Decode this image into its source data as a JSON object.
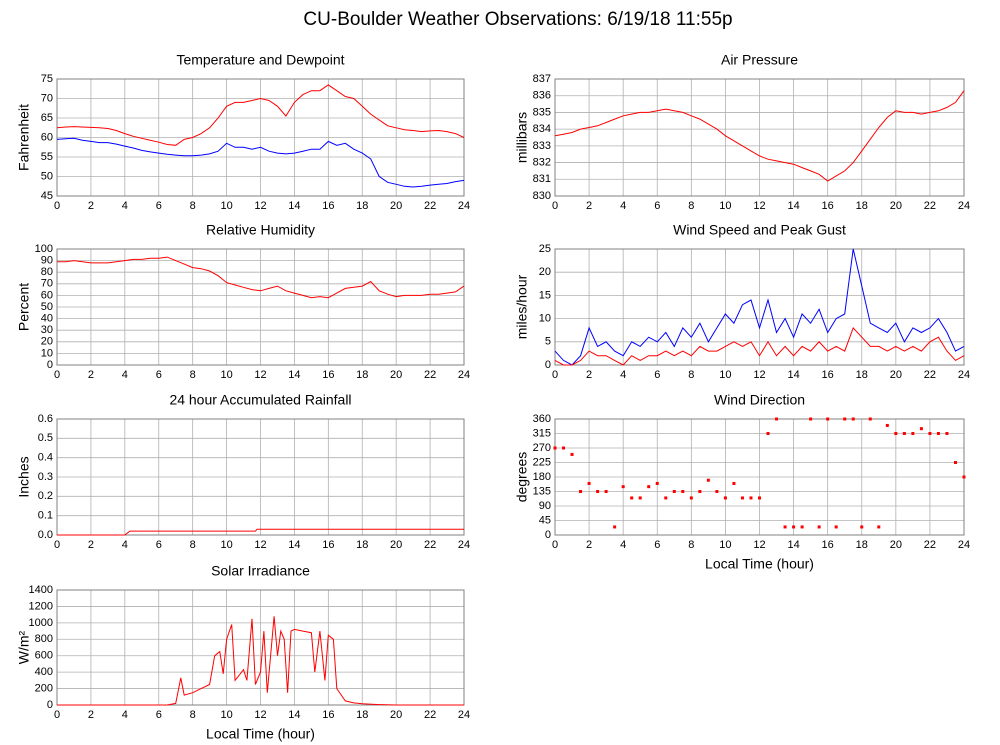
{
  "title": "CU-Boulder Weather Observations: 6/19/18 11:55p",
  "chart_data": [
    {
      "type": "line",
      "title": "Temperature and Dewpoint",
      "ylabel": "Fahrenheit",
      "grid": true,
      "x": [
        0,
        0.5,
        1,
        1.5,
        2,
        2.5,
        3,
        3.5,
        4,
        4.5,
        5,
        5.5,
        6,
        6.5,
        7,
        7.5,
        8,
        8.5,
        9,
        9.5,
        10,
        10.5,
        11,
        11.5,
        12,
        12.5,
        13,
        13.5,
        14,
        14.5,
        15,
        15.5,
        16,
        16.5,
        17,
        17.5,
        18,
        18.5,
        19,
        19.5,
        20,
        20.5,
        21,
        21.5,
        22,
        22.5,
        23,
        23.5,
        24
      ],
      "xlim": [
        0,
        24
      ],
      "xticks": [
        0,
        2,
        4,
        6,
        8,
        10,
        12,
        14,
        16,
        18,
        20,
        22,
        24
      ],
      "ylim": [
        45,
        75
      ],
      "yticks": [
        45,
        50,
        55,
        60,
        65,
        70,
        75
      ],
      "series": [
        {
          "color": "#ff0000",
          "values": [
            62.5,
            62.7,
            62.8,
            62.7,
            62.6,
            62.5,
            62.3,
            61.8,
            61,
            60.3,
            59.8,
            59.3,
            58.8,
            58.2,
            58,
            59.5,
            60,
            61,
            62.5,
            65,
            68,
            69,
            69,
            69.5,
            70,
            69.5,
            68,
            65.5,
            69,
            71,
            72,
            72,
            73.5,
            72,
            70.5,
            70,
            68,
            66,
            64.5,
            63,
            62.5,
            62,
            61.8,
            61.5,
            61.7,
            61.8,
            61.5,
            61,
            60
          ]
        },
        {
          "color": "#0000ff",
          "values": [
            59.5,
            59.7,
            59.8,
            59.3,
            59,
            58.7,
            58.7,
            58.3,
            57.8,
            57.3,
            56.7,
            56.3,
            56,
            55.7,
            55.5,
            55.3,
            55.3,
            55.5,
            55.8,
            56.5,
            58.5,
            57.5,
            57.5,
            57,
            57.5,
            56.5,
            56,
            55.8,
            56,
            56.5,
            57,
            57,
            59,
            58,
            58.5,
            57,
            56,
            54.5,
            50,
            48.5,
            48,
            47.5,
            47.3,
            47.5,
            47.8,
            48,
            48.2,
            48.7,
            49
          ]
        }
      ]
    },
    {
      "type": "line",
      "title": "Air Pressure",
      "ylabel": "millibars",
      "grid": true,
      "x": [
        0,
        0.5,
        1,
        1.5,
        2,
        2.5,
        3,
        3.5,
        4,
        4.5,
        5,
        5.5,
        6,
        6.5,
        7,
        7.5,
        8,
        8.5,
        9,
        9.5,
        10,
        10.5,
        11,
        11.5,
        12,
        12.5,
        13,
        13.5,
        14,
        14.5,
        15,
        15.5,
        16,
        16.5,
        17,
        17.5,
        18,
        18.5,
        19,
        19.5,
        20,
        20.5,
        21,
        21.5,
        22,
        22.5,
        23,
        23.5,
        24
      ],
      "xlim": [
        0,
        24
      ],
      "xticks": [
        0,
        2,
        4,
        6,
        8,
        10,
        12,
        14,
        16,
        18,
        20,
        22,
        24
      ],
      "ylim": [
        830,
        837
      ],
      "yticks": [
        830,
        831,
        832,
        833,
        834,
        835,
        836,
        837
      ],
      "series": [
        {
          "color": "#ff0000",
          "values": [
            833.6,
            833.7,
            833.8,
            834,
            834.1,
            834.2,
            834.4,
            834.6,
            834.8,
            834.9,
            835,
            835,
            835.1,
            835.2,
            835.1,
            835,
            834.8,
            834.6,
            834.3,
            834,
            833.6,
            833.3,
            833,
            832.7,
            832.4,
            832.2,
            832.1,
            832,
            831.9,
            831.7,
            831.5,
            831.3,
            830.9,
            831.2,
            831.5,
            832,
            832.7,
            833.4,
            834.1,
            834.7,
            835.1,
            835,
            835,
            834.9,
            835,
            835.1,
            835.3,
            835.6,
            836.3
          ]
        }
      ]
    },
    {
      "type": "line",
      "title": "Relative Humidity",
      "ylabel": "Percent",
      "grid": true,
      "x": [
        0,
        0.5,
        1,
        1.5,
        2,
        2.5,
        3,
        3.5,
        4,
        4.5,
        5,
        5.5,
        6,
        6.5,
        7,
        7.5,
        8,
        8.5,
        9,
        9.5,
        10,
        10.5,
        11,
        11.5,
        12,
        12.5,
        13,
        13.5,
        14,
        14.5,
        15,
        15.5,
        16,
        16.5,
        17,
        17.5,
        18,
        18.5,
        19,
        19.5,
        20,
        20.5,
        21,
        21.5,
        22,
        22.5,
        23,
        23.5,
        24
      ],
      "xlim": [
        0,
        24
      ],
      "xticks": [
        0,
        2,
        4,
        6,
        8,
        10,
        12,
        14,
        16,
        18,
        20,
        22,
        24
      ],
      "ylim": [
        0,
        100
      ],
      "yticks": [
        0,
        10,
        20,
        30,
        40,
        50,
        60,
        70,
        80,
        90,
        100
      ],
      "series": [
        {
          "color": "#ff0000",
          "values": [
            89,
            89,
            90,
            89,
            88,
            88,
            88,
            89,
            90,
            91,
            91,
            92,
            92,
            93,
            90,
            87,
            84,
            83,
            81,
            77,
            71,
            69,
            67,
            65,
            64,
            66,
            68,
            64,
            62,
            60,
            58,
            59,
            58,
            62,
            66,
            67,
            68,
            72,
            64,
            61,
            59,
            60,
            60,
            60,
            61,
            61,
            62,
            63,
            68
          ]
        }
      ]
    },
    {
      "type": "line",
      "title": "Wind Speed and Peak Gust",
      "ylabel": "miles/hour",
      "grid": true,
      "x": [
        0,
        0.5,
        1,
        1.5,
        2,
        2.5,
        3,
        3.5,
        4,
        4.5,
        5,
        5.5,
        6,
        6.5,
        7,
        7.5,
        8,
        8.5,
        9,
        9.5,
        10,
        10.5,
        11,
        11.5,
        12,
        12.5,
        13,
        13.5,
        14,
        14.5,
        15,
        15.5,
        16,
        16.5,
        17,
        17.5,
        18,
        18.5,
        19,
        19.5,
        20,
        20.5,
        21,
        21.5,
        22,
        22.5,
        23,
        23.5,
        24
      ],
      "xlim": [
        0,
        24
      ],
      "xticks": [
        0,
        2,
        4,
        6,
        8,
        10,
        12,
        14,
        16,
        18,
        20,
        22,
        24
      ],
      "ylim": [
        0,
        25
      ],
      "yticks": [
        0,
        5,
        10,
        15,
        20,
        25
      ],
      "series": [
        {
          "color": "#0000ff",
          "values": [
            3,
            1,
            0,
            2,
            8,
            4,
            5,
            3,
            2,
            5,
            4,
            6,
            5,
            7,
            4,
            8,
            6,
            9,
            5,
            8,
            11,
            9,
            13,
            14,
            8,
            14,
            7,
            10,
            6,
            11,
            9,
            12,
            7,
            10,
            11,
            25,
            17,
            9,
            8,
            7,
            9,
            5,
            8,
            7,
            8,
            10,
            7,
            3,
            4
          ]
        },
        {
          "color": "#ff0000",
          "values": [
            1,
            0,
            0,
            1,
            3,
            2,
            2,
            1,
            0,
            2,
            1,
            2,
            2,
            3,
            2,
            3,
            2,
            4,
            3,
            3,
            4,
            5,
            4,
            5,
            2,
            5,
            2,
            4,
            2,
            4,
            3,
            5,
            3,
            4,
            3,
            8,
            6,
            4,
            4,
            3,
            4,
            3,
            4,
            3,
            5,
            6,
            3,
            1,
            2
          ]
        }
      ]
    },
    {
      "type": "line",
      "title": "24 hour Accumulated Rainfall",
      "ylabel": "Inches",
      "grid": true,
      "x": [
        0,
        4,
        4.3,
        11.7,
        11.8,
        24
      ],
      "xlim": [
        0,
        24
      ],
      "xticks": [
        0,
        2,
        4,
        6,
        8,
        10,
        12,
        14,
        16,
        18,
        20,
        22,
        24
      ],
      "ylim": [
        0,
        0.6
      ],
      "yticks": [
        {
          "value": 0,
          "label": "0.0"
        },
        0.1,
        0.2,
        0.3,
        0.4,
        0.5,
        0.6
      ],
      "series": [
        {
          "color": "#ff0000",
          "values": [
            0,
            0,
            0.02,
            0.02,
            0.03,
            0.03
          ]
        }
      ]
    },
    {
      "type": "scatter",
      "title": "Wind Direction",
      "ylabel": "degrees",
      "xlabel": "Local Time (hour)",
      "grid": true,
      "x": [
        0,
        0.5,
        1,
        1.5,
        2,
        2.5,
        3,
        3.5,
        4,
        4.5,
        5,
        5.5,
        6,
        6.5,
        7,
        7.5,
        8,
        8.5,
        9,
        9.5,
        10,
        10.5,
        11,
        11.5,
        12,
        12.5,
        13,
        13.5,
        14,
        14.5,
        15,
        15.5,
        16,
        16.5,
        17,
        17.5,
        18,
        18.5,
        19,
        19.5,
        20,
        20.5,
        21,
        21.5,
        22,
        22.5,
        23,
        23.5,
        24
      ],
      "xlim": [
        0,
        24
      ],
      "xticks": [
        0,
        2,
        4,
        6,
        8,
        10,
        12,
        14,
        16,
        18,
        20,
        22,
        24
      ],
      "ylim": [
        0,
        360
      ],
      "yticks": [
        0,
        45,
        90,
        135,
        180,
        225,
        270,
        315,
        360
      ],
      "series": [
        {
          "color": "#ff0000",
          "values": [
            270,
            270,
            250,
            135,
            160,
            135,
            135,
            25,
            150,
            115,
            115,
            150,
            160,
            115,
            135,
            135,
            115,
            135,
            170,
            135,
            115,
            160,
            115,
            115,
            115,
            315,
            360,
            25,
            25,
            25,
            360,
            25,
            360,
            25,
            360,
            360,
            25,
            360,
            25,
            340,
            315,
            315,
            315,
            330,
            315,
            315,
            315,
            225,
            180
          ]
        }
      ]
    },
    {
      "type": "line",
      "title": "Solar Irradiance",
      "ylabel": "W/m²",
      "xlabel": "Local Time (hour)",
      "grid": true,
      "x": [
        0,
        6.5,
        7,
        7.3,
        7.5,
        8,
        8.5,
        9,
        9.3,
        9.6,
        9.8,
        10,
        10.3,
        10.5,
        11,
        11.2,
        11.5,
        11.7,
        12,
        12.2,
        12.4,
        12.8,
        13,
        13.2,
        13.4,
        13.6,
        13.8,
        14,
        14.5,
        15,
        15.2,
        15.5,
        15.8,
        16,
        16.3,
        16.5,
        17,
        17.5,
        18,
        19,
        20,
        24
      ],
      "xlim": [
        0,
        24
      ],
      "xticks": [
        0,
        2,
        4,
        6,
        8,
        10,
        12,
        14,
        16,
        18,
        20,
        22,
        24
      ],
      "ylim": [
        0,
        1400
      ],
      "yticks": [
        0,
        200,
        400,
        600,
        800,
        1000,
        1200,
        1400
      ],
      "series": [
        {
          "color": "#ff0000",
          "values": [
            0,
            0,
            20,
            330,
            120,
            150,
            200,
            250,
            600,
            650,
            380,
            800,
            980,
            300,
            430,
            300,
            1050,
            250,
            400,
            900,
            150,
            1080,
            600,
            900,
            800,
            150,
            900,
            920,
            900,
            880,
            400,
            900,
            300,
            850,
            800,
            200,
            50,
            25,
            15,
            5,
            0,
            0
          ]
        }
      ]
    }
  ]
}
